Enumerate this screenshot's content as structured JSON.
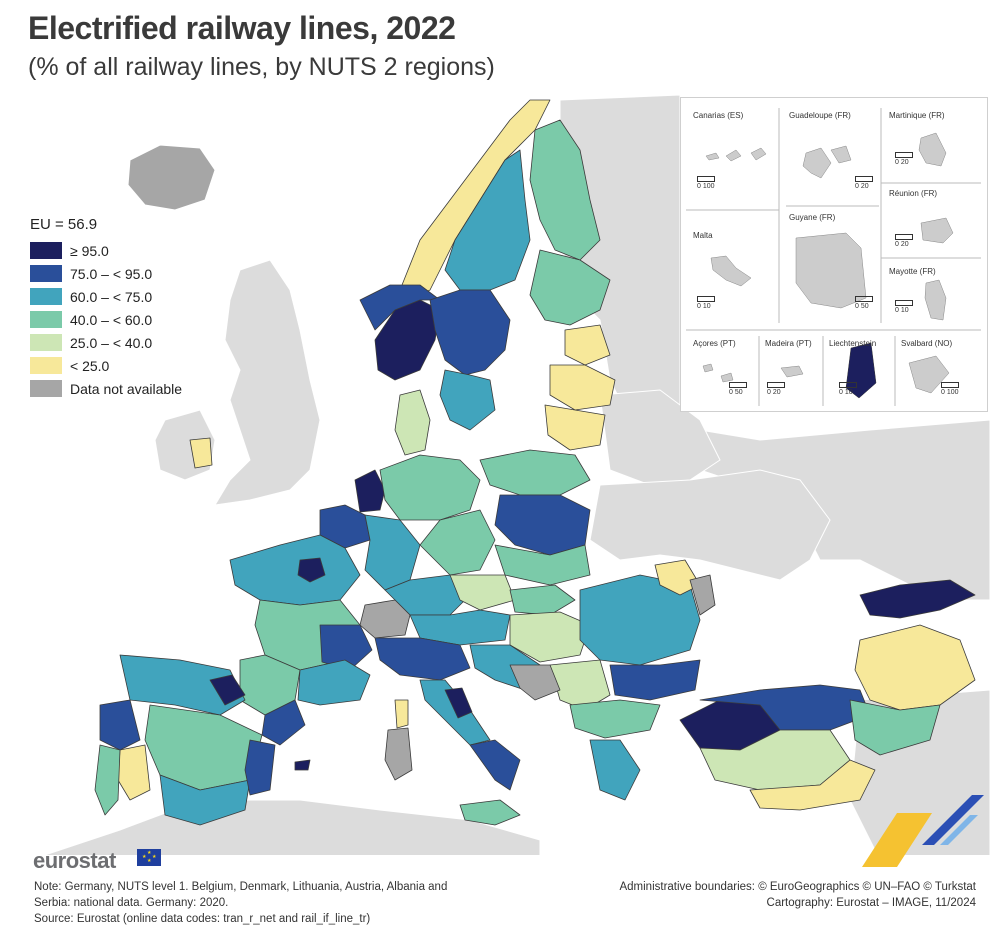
{
  "title": "Electrified railway lines, 2022",
  "subtitle": "(% of all railway lines, by NUTS 2 regions)",
  "legend": {
    "eu_value": "EU = 56.9",
    "classes": [
      {
        "label": "≥ 95.0",
        "color": "#1c1f5e"
      },
      {
        "label": "75.0 – < 95.0",
        "color": "#2a4f9a"
      },
      {
        "label": "60.0 – < 75.0",
        "color": "#41a4bd"
      },
      {
        "label": "40.0 – < 60.0",
        "color": "#7bcaa9"
      },
      {
        "label": "25.0 – < 40.0",
        "color": "#cde6b5"
      },
      {
        "label": "< 25.0",
        "color": "#f7e89a"
      },
      {
        "label": "Data not available",
        "color": "#a6a6a6"
      }
    ]
  },
  "colors": {
    "non_covered": "#dcdcdc",
    "sea": "#ffffff",
    "border": "#3b3b3b"
  },
  "insets": {
    "canarias": {
      "name": "Canarias (ES)",
      "scale": "0   100"
    },
    "guadeloupe": {
      "name": "Guadeloupe (FR)",
      "scale": "0  20"
    },
    "martinique": {
      "name": "Martinique (FR)",
      "scale": "0  20"
    },
    "reunion": {
      "name": "Réunion (FR)",
      "scale": "0  20"
    },
    "guyane": {
      "name": "Guyane (FR)",
      "scale": "0  50"
    },
    "malta": {
      "name": "Malta",
      "scale": "0  10"
    },
    "mayotte": {
      "name": "Mayotte (FR)",
      "scale": "0  10"
    },
    "acores": {
      "name": "Açores (PT)",
      "scale": "0  50"
    },
    "madeira": {
      "name": "Madeira (PT)",
      "scale": "0  20"
    },
    "liechtenstein": {
      "name": "Liechtenstein",
      "scale": "0  10"
    },
    "svalbard": {
      "name": "Svalbard (NO)",
      "scale": "0 100"
    }
  },
  "footer": {
    "brand": "eurostat",
    "note_line1": "Note: Germany, NUTS level 1. Belgium, Denmark, Lithuania, Austria, Albania and",
    "note_line2": "Serbia: national data. Germany: 2020.",
    "note_line3": "Source: Eurostat (online data codes: tran_r_net and rail_if_line_tr)",
    "credits_line1": "Administrative boundaries: © EuroGeographics © UN–FAO © Turkstat",
    "credits_line2": "Cartography: Eurostat – IMAGE, 11/2024"
  }
}
